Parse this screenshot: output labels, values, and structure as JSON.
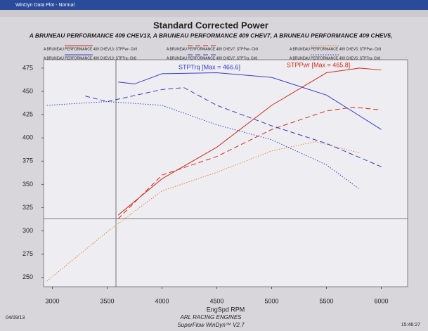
{
  "window_title": "WinDyn Data Plot - Normal",
  "footer": {
    "date": "04/09/13",
    "company": "ARL RACING ENGINES",
    "software": "SuperFlow WinDyn™ V2.7",
    "time": "15:46:27"
  },
  "chart_data": {
    "type": "line",
    "title": "Standard Corrected Power",
    "subtitle": "A BRUNEAU PERFORMANCE 409 CHEV13, A BRUNEAU PERFORMANCE 409 CHEV7, A BRUNEAU PERFORMANCE 409 CHEV5,",
    "x_label": "EngSpd RPM",
    "annotations": [
      "STPTrq [Max = 466.6]",
      "STPPwr [Max = 465.8]"
    ],
    "xlim": [
      2920,
      6240
    ],
    "ylim": [
      240,
      484
    ],
    "xticks": [
      3000,
      3500,
      4000,
      4500,
      5000,
      5500,
      6000
    ],
    "yticks": [
      250,
      275,
      300,
      325,
      350,
      375,
      400,
      425,
      450,
      475
    ],
    "series": [
      {
        "name": "A BRUNEAU PERFORMANCE 409 CHEV13: STPPwr- Ch9",
        "color": "#d02a1c",
        "style": "solid",
        "x": [
          3600,
          4000,
          4500,
          5000,
          5500,
          5800,
          6000
        ],
        "values": [
          317,
          356,
          390,
          435,
          470,
          475,
          473
        ]
      },
      {
        "name": "A BRUNEAU PERFORMANCE 409 CHEV7: STPPwr- Ch9",
        "color": "#d02a1c",
        "style": "dashed",
        "x": [
          3600,
          4000,
          4500,
          5000,
          5500,
          5750,
          6000
        ],
        "values": [
          313,
          360,
          380,
          409,
          429,
          433,
          430
        ]
      },
      {
        "name": "A BRUNEAU PERFORMANCE 409 CHEV5: STPPwr- Ch9",
        "color": "#e0802a",
        "style": "dotted",
        "x": [
          2950,
          3500,
          4000,
          4500,
          5000,
          5400,
          5800
        ],
        "values": [
          246,
          299,
          343,
          363,
          386,
          396,
          384
        ]
      },
      {
        "name": "A BRUNEAU PERFORMANCE 409 CHEV13: STPTrq- Ch8",
        "color": "#3a3ac8",
        "style": "solid",
        "x": [
          3600,
          3750,
          4000,
          4500,
          5000,
          5500,
          6000
        ],
        "values": [
          460,
          458,
          469,
          470,
          465,
          446,
          409
        ]
      },
      {
        "name": "A BRUNEAU PERFORMANCE 409 CHEV7: STPTrq- Ch8",
        "color": "#3a3ac8",
        "style": "dashed",
        "x": [
          3300,
          3500,
          4000,
          4200,
          4500,
          5000,
          5500,
          6000
        ],
        "values": [
          445,
          439,
          452,
          454,
          435,
          413,
          394,
          369
        ]
      },
      {
        "name": "A BRUNEAU PERFORMANCE 409 CHEV5: STPTrq- Ch8",
        "color": "#3a3ac8",
        "style": "dotted",
        "x": [
          2950,
          3500,
          4000,
          4500,
          5000,
          5500,
          5800
        ],
        "values": [
          435,
          439,
          435,
          414,
          398,
          371,
          345
        ]
      }
    ]
  }
}
